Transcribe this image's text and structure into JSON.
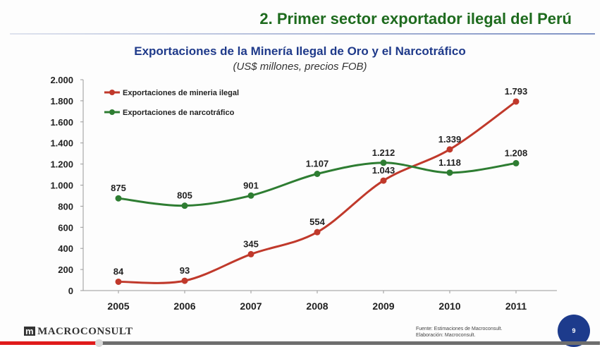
{
  "slide": {
    "title": "2. Primer sector exportador ilegal del Perú",
    "page_number": "9"
  },
  "footer": {
    "logo_text": "MACROCONSULT",
    "source_line1": "Fuente: Estimaciones de Macroconsult.",
    "source_line2": "Elaboración: Macroconsult."
  },
  "video": {
    "progress_fraction": 0.165
  },
  "chart_data": {
    "type": "line",
    "title": "Exportaciones de la Minería Ilegal de Oro y  el Narcotráfico",
    "subtitle": "(US$ millones, precios FOB)",
    "categories": [
      "2005",
      "2006",
      "2007",
      "2008",
      "2009",
      "2010",
      "2011"
    ],
    "ylim": [
      0,
      2000
    ],
    "yticks": [
      0,
      200,
      400,
      600,
      800,
      1000,
      1200,
      1400,
      1600,
      1800,
      2000
    ],
    "ytick_labels": [
      "0",
      "200",
      "400",
      "600",
      "800",
      "1.000",
      "1.200",
      "1.400",
      "1.600",
      "1.800",
      "2.000"
    ],
    "legend_position": "top-left",
    "grid": false,
    "series": [
      {
        "name": "Exportaciones de  mineria ilegal",
        "color": "#c0392b",
        "values": [
          84,
          93,
          345,
          554,
          1043,
          1339,
          1793
        ],
        "labels": [
          "84",
          "93",
          "345",
          "554",
          "1.043",
          "1.339",
          "1.793"
        ]
      },
      {
        "name": "Exportaciones de narcotráfico",
        "color": "#2e7d32",
        "values": [
          875,
          805,
          901,
          1107,
          1212,
          1118,
          1208
        ],
        "labels": [
          "875",
          "805",
          "901",
          "1.107",
          "1.212",
          "1.118",
          "1.208"
        ]
      }
    ]
  }
}
